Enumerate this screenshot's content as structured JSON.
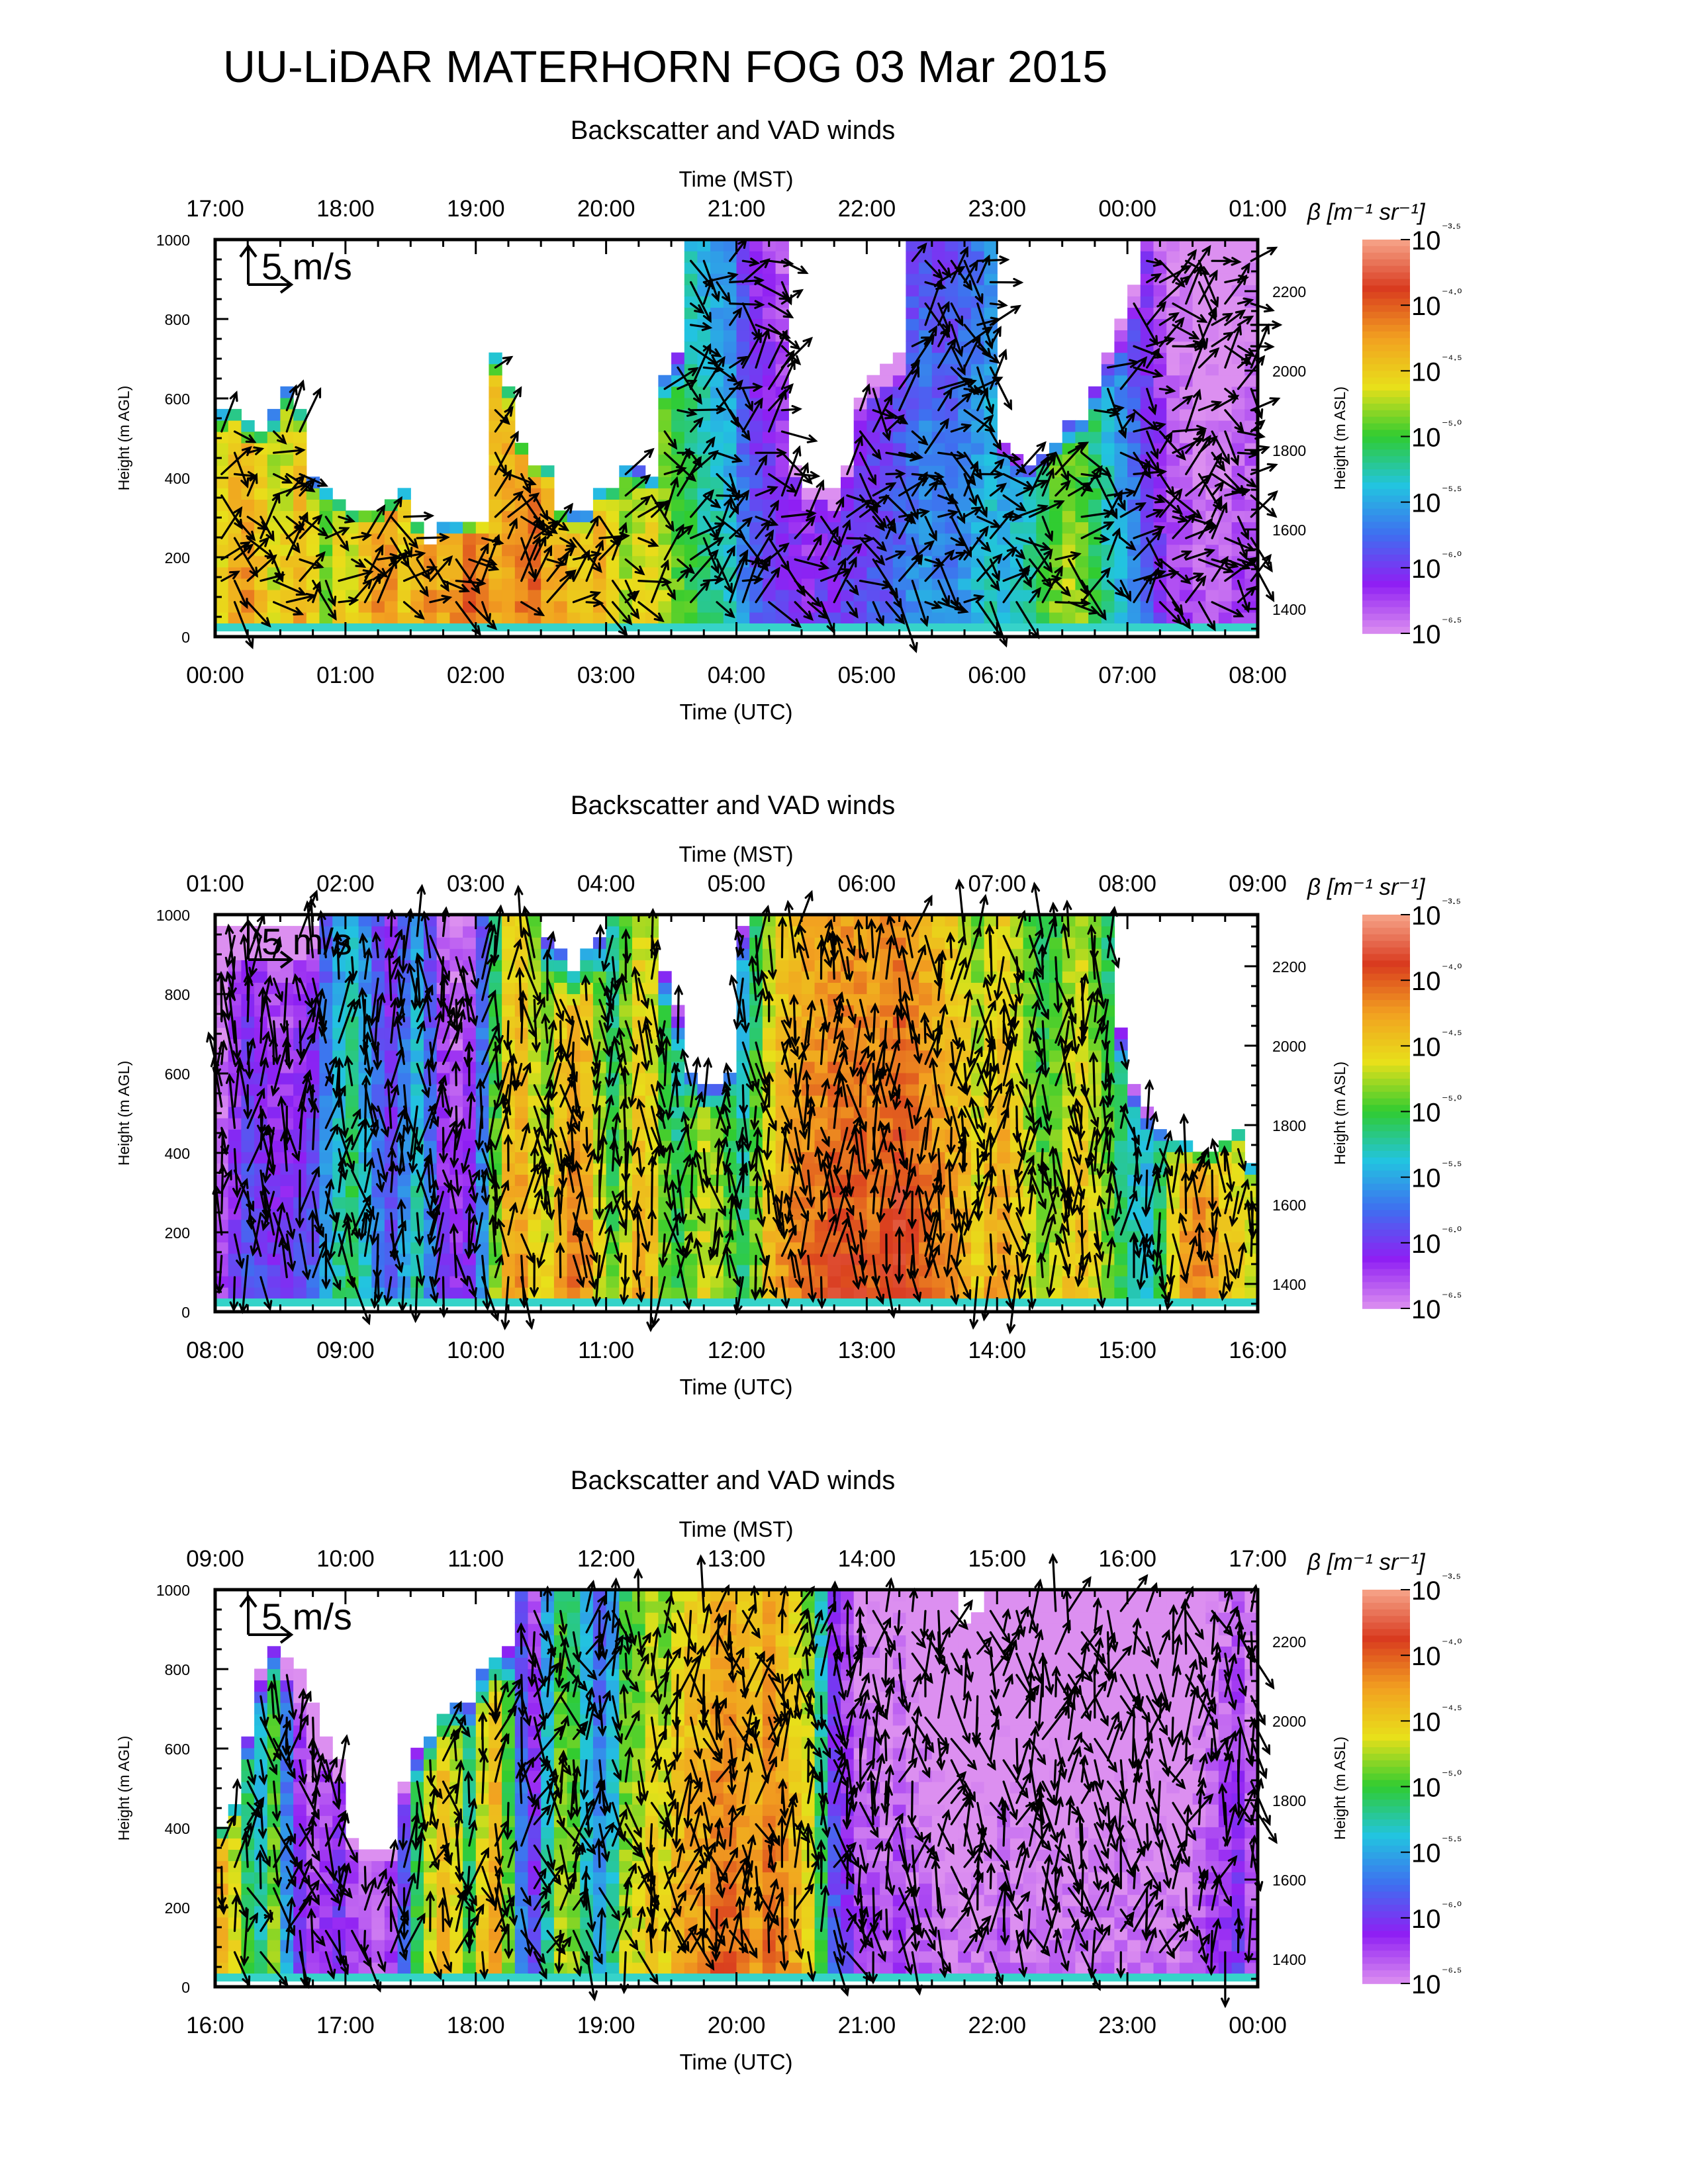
{
  "figure": {
    "title": "UU-LiDAR MATERHORN FOG  03 Mar 2015"
  },
  "chart_data": [
    {
      "type": "heatmap",
      "title": "Backscatter and VAD winds",
      "xlabel": "Time (UTC)",
      "x2label": "Time (MST)",
      "ylabel": "Height (m AGL)",
      "y2label": "Height (m ASL)",
      "utc_ticks": [
        "00:00",
        "01:00",
        "02:00",
        "03:00",
        "04:00",
        "05:00",
        "06:00",
        "07:00",
        "08:00"
      ],
      "mst_ticks": [
        "17:00",
        "18:00",
        "19:00",
        "20:00",
        "21:00",
        "22:00",
        "23:00",
        "00:00",
        "01:00"
      ],
      "yticks": [
        0,
        200,
        400,
        600,
        800,
        1000
      ],
      "ylim": [
        0,
        1000
      ],
      "asl_ticks": [
        1400,
        1600,
        1800,
        2000,
        2200
      ],
      "asl_offset": 1330,
      "wind_scale_label": "5 m/s",
      "colorbar": {
        "label": "β [m⁻¹ sr⁻¹]",
        "tick_labels": [
          "10⁻³·⁵",
          "10⁻⁴·⁰",
          "10⁻⁴·⁵",
          "10⁻⁵·⁰",
          "10⁻⁵·⁵",
          "10⁻⁶·⁰",
          "10⁻⁶·⁵"
        ],
        "exponents": [
          -3.5,
          -4.0,
          -4.5,
          -5.0,
          -5.5,
          -6.0,
          -6.5
        ],
        "colors": [
          "#f7a58a",
          "#d93b1f",
          "#f2a020",
          "#e8e01a",
          "#30cc30",
          "#22c4e0",
          "#3f6ef0",
          "#8f1ff3",
          "#dc8ff0"
        ]
      },
      "top_profile": [
        0.56,
        0.57,
        0.52,
        0.51,
        0.55,
        0.62,
        0.56,
        0.37,
        0.36,
        0.33,
        0.3,
        0.3,
        0.29,
        0.32,
        0.35,
        0.26,
        0.22,
        0.25,
        0.25,
        0.26,
        0.27,
        0.72,
        0.63,
        0.48,
        0.41,
        0.41,
        0.3,
        0.28,
        0.28,
        0.34,
        0.36,
        0.42,
        0.4,
        0.38,
        0.65,
        0.7,
        1,
        1,
        1,
        1,
        1,
        1,
        1,
        1,
        0.42,
        0.35,
        0.36,
        0.34,
        0.42,
        0.6,
        0.66,
        0.68,
        0.7,
        1,
        1,
        1,
        1,
        1,
        1,
        1,
        0.48,
        0.44,
        0.42,
        0.45,
        0.48,
        0.52,
        0.54,
        0.62,
        0.7,
        0.78,
        0.88,
        1,
        1,
        1,
        1,
        1,
        1,
        1,
        1,
        1
      ],
      "base_exponent": [
        -4.5,
        -4.3,
        -4.2,
        -4.4,
        -4.6,
        -4.5,
        -4.3,
        -4.5,
        -4.8,
        -4.5,
        -4.6,
        -4.4,
        -4.2,
        -4.2,
        -4.5,
        -4.3,
        -4.2,
        -4.3,
        -4.2,
        -4.0,
        -4.1,
        -4.3,
        -4.2,
        -4.1,
        -4.0,
        -4.3,
        -4.3,
        -4.4,
        -4.4,
        -4.3,
        -4.5,
        -4.7,
        -4.6,
        -4.5,
        -4.7,
        -4.9,
        -5.0,
        -5.1,
        -5.2,
        -5.3,
        -5.6,
        -5.8,
        -5.9,
        -6.0,
        -6.0,
        -6.1,
        -6.0,
        -6.0,
        -5.9,
        -5.9,
        -5.8,
        -5.8,
        -5.7,
        -5.6,
        -5.5,
        -5.6,
        -5.6,
        -5.5,
        -5.4,
        -5.3,
        -5.4,
        -5.3,
        -5.2,
        -5.0,
        -4.8,
        -4.7,
        -4.8,
        -5.0,
        -5.2,
        -5.4,
        -5.6,
        -5.8,
        -6.0,
        -6.2,
        -6.2,
        -6.3,
        -6.3,
        -6.3,
        -6.2,
        -6.2
      ]
    },
    {
      "type": "heatmap",
      "title": "Backscatter and VAD winds",
      "xlabel": "Time (UTC)",
      "x2label": "Time (MST)",
      "ylabel": "Height (m AGL)",
      "y2label": "Height (m ASL)",
      "utc_ticks": [
        "08:00",
        "09:00",
        "10:00",
        "11:00",
        "12:00",
        "13:00",
        "14:00",
        "15:00",
        "16:00"
      ],
      "mst_ticks": [
        "01:00",
        "02:00",
        "03:00",
        "04:00",
        "05:00",
        "06:00",
        "07:00",
        "08:00",
        "09:00"
      ],
      "yticks": [
        0,
        200,
        400,
        600,
        800,
        1000
      ],
      "ylim": [
        0,
        1000
      ],
      "asl_ticks": [
        1400,
        1600,
        1800,
        2000,
        2200
      ],
      "asl_offset": 1330,
      "wind_scale_label": "5 m/s",
      "colorbar": {
        "label": "β [m⁻¹ sr⁻¹]",
        "tick_labels": [
          "10⁻³·⁵",
          "10⁻⁴·⁰",
          "10⁻⁴·⁵",
          "10⁻⁵·⁰",
          "10⁻⁵·⁵",
          "10⁻⁶·⁰",
          "10⁻⁶·⁵"
        ],
        "exponents": [
          -3.5,
          -4.0,
          -4.5,
          -5.0,
          -5.5,
          -6.0,
          -6.5
        ],
        "colors": [
          "#f7a58a",
          "#d93b1f",
          "#f2a020",
          "#e8e01a",
          "#30cc30",
          "#22c4e0",
          "#3f6ef0",
          "#8f1ff3",
          "#dc8ff0"
        ]
      },
      "top_profile": [
        0.98,
        0.98,
        0.98,
        0.98,
        0.98,
        0.98,
        0.98,
        0.98,
        1,
        1,
        1,
        1,
        1,
        1,
        1,
        1,
        1,
        1,
        1,
        1,
        1,
        1,
        1,
        1,
        1,
        0.95,
        0.9,
        0.85,
        0.9,
        0.95,
        1,
        1,
        1,
        1,
        0.85,
        0.75,
        0.6,
        0.55,
        0.55,
        0.6,
        0.98,
        1,
        1,
        1,
        1,
        1,
        1,
        1,
        1,
        1,
        1,
        1,
        1,
        1,
        1,
        1,
        1,
        1,
        1,
        1,
        1,
        1,
        1,
        1,
        1,
        1,
        1,
        1,
        1,
        0.7,
        0.55,
        0.5,
        0.45,
        0.42,
        0.4,
        0.38,
        0.38,
        0.42,
        0.45,
        0.35
      ],
      "base_exponent": [
        -6.2,
        -6.0,
        -5.8,
        -5.9,
        -6.0,
        -6.0,
        -5.9,
        -5.8,
        -5.5,
        -5.2,
        -5.0,
        -5.3,
        -5.6,
        -5.8,
        -5.5,
        -5.2,
        -5.6,
        -6.0,
        -6.1,
        -6.0,
        -5.5,
        -4.8,
        -4.3,
        -4.2,
        -4.5,
        -4.6,
        -4.3,
        -4.1,
        -4.2,
        -4.6,
        -4.9,
        -4.6,
        -4.3,
        -4.4,
        -4.8,
        -5.0,
        -4.8,
        -4.6,
        -4.7,
        -4.9,
        -5.1,
        -4.8,
        -4.4,
        -4.2,
        -4.1,
        -4.0,
        -4.0,
        -3.9,
        -3.9,
        -3.9,
        -4.0,
        -3.9,
        -3.8,
        -3.9,
        -4.0,
        -4.1,
        -4.2,
        -4.3,
        -4.5,
        -4.3,
        -4.2,
        -4.4,
        -4.6,
        -4.8,
        -4.7,
        -4.5,
        -4.4,
        -4.6,
        -4.8,
        -5.0,
        -5.2,
        -5.3,
        -5.0,
        -4.5,
        -4.2,
        -4.1,
        -4.2,
        -4.4,
        -4.5,
        -4.6
      ]
    },
    {
      "type": "heatmap",
      "title": "Backscatter and VAD winds",
      "xlabel": "Time (UTC)",
      "x2label": "Time (MST)",
      "ylabel": "Height (m AGL)",
      "y2label": "Height (m ASL)",
      "utc_ticks": [
        "16:00",
        "17:00",
        "18:00",
        "19:00",
        "20:00",
        "21:00",
        "22:00",
        "23:00",
        "00:00"
      ],
      "mst_ticks": [
        "09:00",
        "10:00",
        "11:00",
        "12:00",
        "13:00",
        "14:00",
        "15:00",
        "16:00",
        "17:00"
      ],
      "yticks": [
        0,
        200,
        400,
        600,
        800,
        1000
      ],
      "ylim": [
        0,
        1000
      ],
      "asl_ticks": [
        1400,
        1600,
        1800,
        2000,
        2200
      ],
      "asl_offset": 1330,
      "wind_scale_label": "5 m/s",
      "colorbar": {
        "label": "β [m⁻¹ sr⁻¹]",
        "tick_labels": [
          "10⁻³·⁵",
          "10⁻⁴·⁰",
          "10⁻⁴·⁵",
          "10⁻⁵·⁰",
          "10⁻⁵·⁵",
          "10⁻⁶·⁰",
          "10⁻⁶·⁵"
        ],
        "exponents": [
          -3.5,
          -4.0,
          -4.5,
          -5.0,
          -5.5,
          -6.0,
          -6.5
        ],
        "colors": [
          "#f7a58a",
          "#d93b1f",
          "#f2a020",
          "#e8e01a",
          "#30cc30",
          "#22c4e0",
          "#3f6ef0",
          "#8f1ff3",
          "#dc8ff0"
        ]
      },
      "top_profile": [
        0.38,
        0.45,
        0.62,
        0.78,
        0.86,
        0.82,
        0.78,
        0.7,
        0.62,
        0.55,
        0.35,
        0.33,
        0.32,
        0.33,
        0.5,
        0.58,
        0.62,
        0.68,
        0.7,
        0.72,
        0.78,
        0.82,
        0.85,
        1,
        1,
        1,
        1,
        1,
        1,
        1,
        1,
        1,
        1,
        1,
        1,
        1,
        1,
        1,
        1,
        1,
        1,
        1,
        1,
        1,
        1,
        1,
        1,
        1,
        1,
        1,
        1,
        1,
        1,
        1,
        1,
        1,
        1,
        0.9,
        0.95,
        1,
        1,
        1,
        1,
        1,
        1,
        1,
        1,
        1,
        1,
        1,
        1,
        1,
        1,
        1,
        1,
        1,
        1,
        1,
        1,
        1
      ],
      "base_exponent": [
        -4.3,
        -4.6,
        -5.0,
        -5.2,
        -4.8,
        -5.5,
        -6.0,
        -6.2,
        -6.1,
        -6.0,
        -6.2,
        -6.3,
        -6.3,
        -6.2,
        -5.8,
        -5.0,
        -4.6,
        -4.3,
        -4.5,
        -5.0,
        -4.5,
        -4.2,
        -4.8,
        -5.6,
        -5.9,
        -5.2,
        -4.7,
        -4.8,
        -5.2,
        -5.5,
        -5.2,
        -4.7,
        -4.6,
        -4.4,
        -4.5,
        -4.3,
        -4.2,
        -4.2,
        -4.0,
        -4.0,
        -4.1,
        -4.2,
        -4.0,
        -4.1,
        -4.3,
        -4.5,
        -5.0,
        -5.8,
        -6.0,
        -6.2,
        -6.2,
        -6.3,
        -6.2,
        -6.3,
        -6.3,
        -6.4,
        -6.4,
        -6.4,
        -6.4,
        -6.4,
        -6.3,
        -6.4,
        -6.4,
        -6.4,
        -6.4,
        -6.4,
        -6.4,
        -6.4,
        -6.4,
        -6.4,
        -6.4,
        -6.4,
        -6.4,
        -6.4,
        -6.4,
        -6.3,
        -6.2,
        -6.1,
        -6.0,
        -6.2
      ]
    }
  ]
}
